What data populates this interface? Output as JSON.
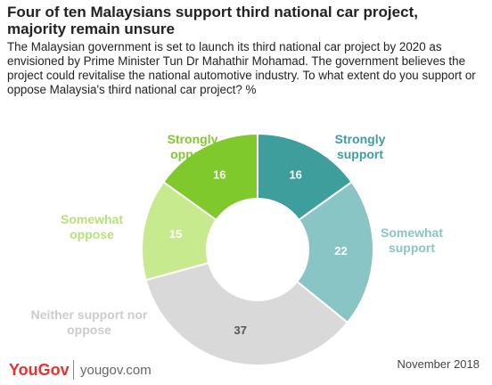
{
  "chart_data": {
    "type": "donut",
    "title": "Four of ten Malaysians support third national car project, majority remain unsure",
    "subtitle": "The Malaysian government is set to launch its third national car project by 2020 as envisioned by Prime Minister Tun Dr Mahathir Mohamad. The government believes the project could revitalise the national automotive industry. To what extent do you support or oppose Malaysia's third national car project? %",
    "categories": [
      "Strongly support",
      "Somewhat support",
      "Neither support nor oppose",
      "Somewhat oppose",
      "Strongly oppose"
    ],
    "values": [
      16,
      22,
      37,
      15,
      16
    ],
    "colors": [
      "#3d9e9c",
      "#88c5c4",
      "#d9d9d9",
      "#c8ea8e",
      "#7fc92c"
    ]
  },
  "footer": {
    "brand": "YouGov",
    "website": "yougov.com",
    "date": "November 2018"
  }
}
